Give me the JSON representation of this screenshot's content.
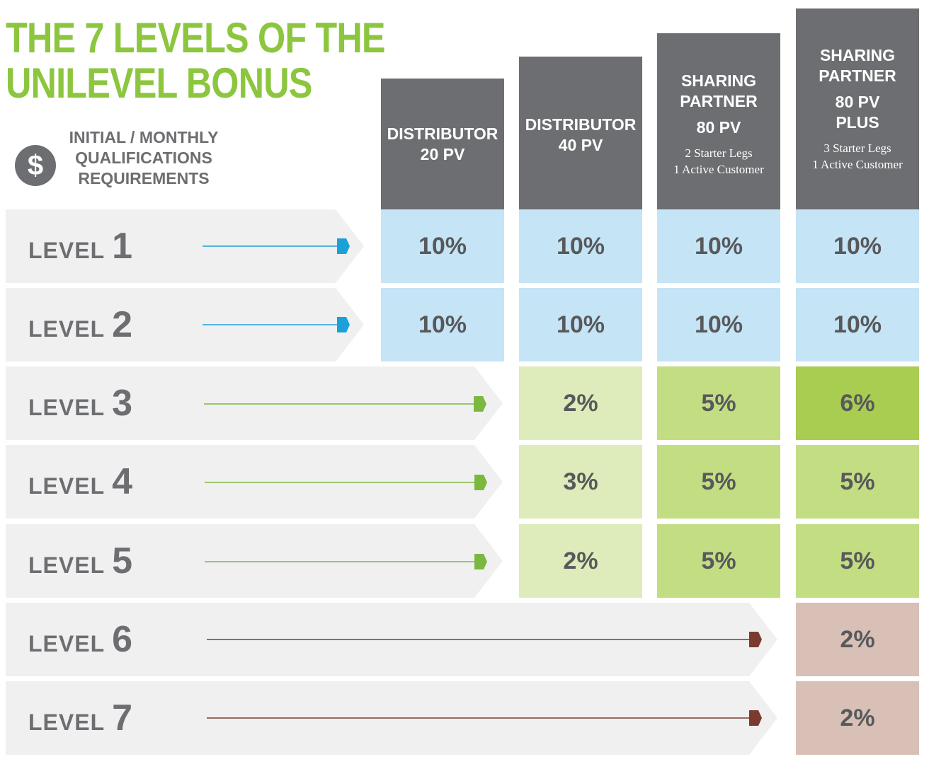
{
  "title": {
    "line1": "THE 7 LEVELS OF THE",
    "line2": "UNILEVEL BONUS"
  },
  "qualifications": {
    "line1": "INITIAL / MONTHLY",
    "line2": "QUALIFICATIONS",
    "line3": "REQUIREMENTS",
    "icon_symbol": "$",
    "icon": "dollar-circle-icon"
  },
  "columns": [
    {
      "title_lines": [
        "DISTRIBUTOR",
        "20 PV"
      ],
      "sub_lines": []
    },
    {
      "title_lines": [
        "DISTRIBUTOR",
        "40 PV"
      ],
      "sub_lines": []
    },
    {
      "title_lines": [
        "SHARING",
        "PARTNER"
      ],
      "title2_lines": [
        "80 PV"
      ],
      "sub_lines": [
        "2 Starter Legs",
        "1 Active Customer"
      ]
    },
    {
      "title_lines": [
        "SHARING",
        "PARTNER"
      ],
      "title2_lines": [
        "80 PV",
        "PLUS"
      ],
      "sub_lines": [
        "3 Starter Legs",
        "1 Active Customer"
      ]
    }
  ],
  "levels": [
    {
      "word": "LEVEL",
      "number": "1",
      "values": [
        "10%",
        "10%",
        "10%",
        "10%"
      ]
    },
    {
      "word": "LEVEL",
      "number": "2",
      "values": [
        "10%",
        "10%",
        "10%",
        "10%"
      ]
    },
    {
      "word": "LEVEL",
      "number": "3",
      "values": [
        "",
        "2%",
        "5%",
        "6%"
      ]
    },
    {
      "word": "LEVEL",
      "number": "4",
      "values": [
        "",
        "3%",
        "5%",
        "5%"
      ]
    },
    {
      "word": "LEVEL",
      "number": "5",
      "values": [
        "",
        "2%",
        "5%",
        "5%"
      ]
    },
    {
      "word": "LEVEL",
      "number": "6",
      "values": [
        "",
        "",
        "",
        "2%"
      ]
    },
    {
      "word": "LEVEL",
      "number": "7",
      "values": [
        "",
        "",
        "",
        "2%"
      ]
    }
  ],
  "colors": {
    "title_green": "#8cc63f",
    "header_gray": "#6d6e71",
    "row_bg": "#f0f0f0",
    "blue_cell": "#c5e4f6",
    "blue_arrow": "#1ba0d8",
    "green_light": "#deebba",
    "green_mid": "#c3dd83",
    "green_dark": "#a8cd50",
    "green_arrow": "#7cb83f",
    "brown_cell": "#d8c0b6",
    "brown_arrow": "#7a3b2e"
  }
}
